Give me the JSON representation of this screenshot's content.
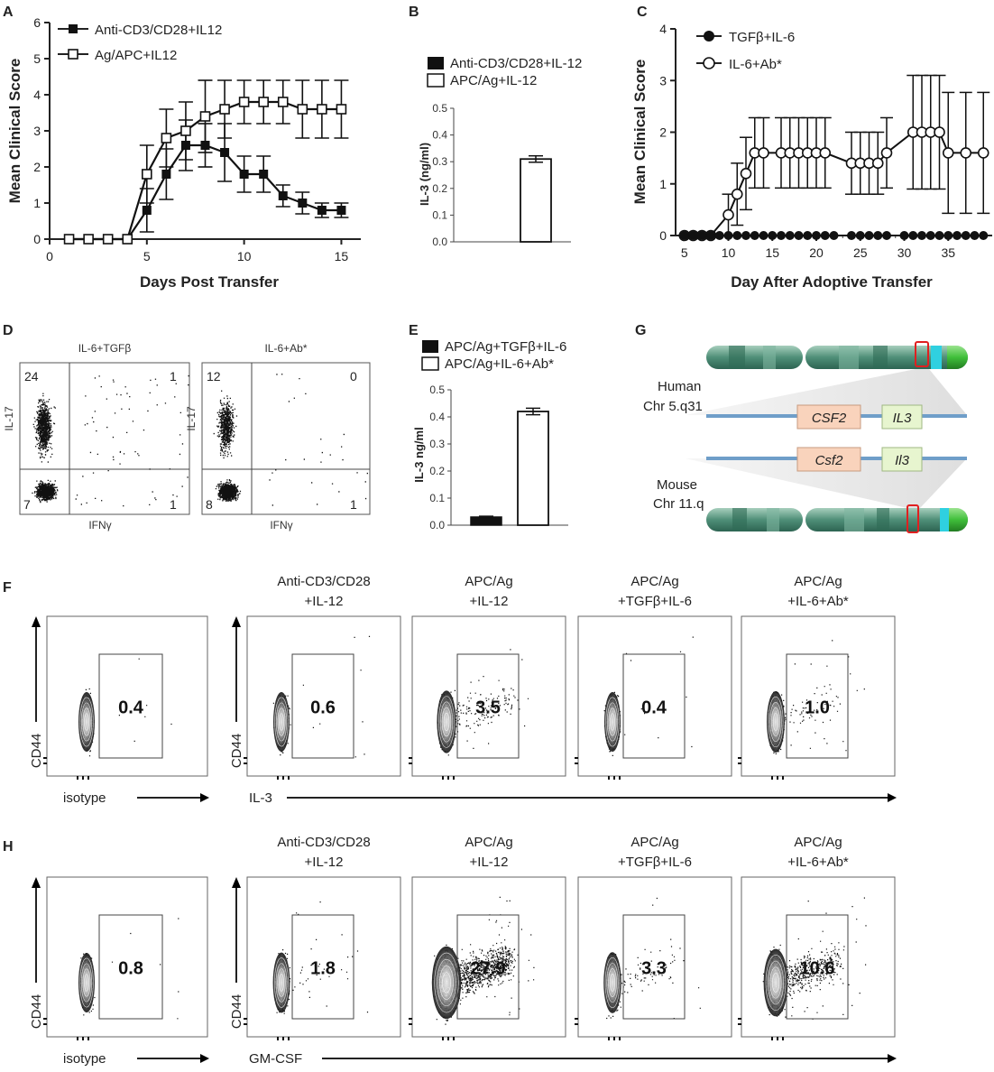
{
  "panel_labels": {
    "A": "A",
    "B": "B",
    "C": "C",
    "D": "D",
    "E": "E",
    "F": "F",
    "G": "G",
    "H": "H"
  },
  "chart_data": [
    {
      "id": "A",
      "type": "line",
      "xlabel": "Days Post Transfer",
      "ylabel": "Mean Clinical Score",
      "xlim": [
        0,
        16
      ],
      "ylim": [
        0,
        6
      ],
      "xticks": [
        "0",
        "5",
        "10",
        "15"
      ],
      "yticks": [
        "0",
        "1",
        "2",
        "3",
        "4",
        "5",
        "6"
      ],
      "series": [
        {
          "name": "Anti-CD3/CD28+IL12",
          "marker": "filled-square",
          "x": [
            1,
            2,
            3,
            4,
            5,
            6,
            7,
            8,
            9,
            10,
            11,
            12,
            13,
            14,
            15
          ],
          "y": [
            0,
            0,
            0,
            0,
            0.8,
            1.8,
            2.6,
            2.6,
            2.4,
            1.8,
            1.8,
            1.2,
            1.0,
            0.8,
            0.8
          ],
          "err": [
            0,
            0,
            0,
            0,
            0.6,
            0.7,
            0.7,
            0.6,
            0.8,
            0.5,
            0.5,
            0.3,
            0.3,
            0.2,
            0.2
          ]
        },
        {
          "name": "Ag/APC+IL12",
          "marker": "open-square",
          "x": [
            1,
            2,
            3,
            4,
            5,
            6,
            7,
            8,
            9,
            10,
            11,
            12,
            13,
            14,
            15
          ],
          "y": [
            0,
            0,
            0,
            0,
            1.8,
            2.8,
            3.0,
            3.4,
            3.6,
            3.8,
            3.8,
            3.8,
            3.6,
            3.6,
            3.6
          ],
          "err": [
            0,
            0,
            0,
            0,
            0.8,
            0.8,
            0.8,
            1.0,
            0.8,
            0.6,
            0.6,
            0.6,
            0.8,
            0.8,
            0.8
          ]
        }
      ]
    },
    {
      "id": "B",
      "type": "bar",
      "ylabel": "IL-3 (ng/ml)",
      "ylim": [
        0,
        0.5
      ],
      "yticks": [
        "0.0",
        "0.1",
        "0.2",
        "0.3",
        "0.4",
        "0.5"
      ],
      "categories": [
        "Anti-CD3/CD28+IL-12",
        "APC/Ag+IL-12"
      ],
      "values": [
        0,
        0.31
      ],
      "err": [
        0,
        0.012
      ]
    },
    {
      "id": "C",
      "type": "line",
      "xlabel": "Day After Adoptive Transfer",
      "ylabel": "Mean Clinical Score",
      "xlim": [
        4,
        40
      ],
      "ylim": [
        0,
        4
      ],
      "xticks": [
        "5",
        "10",
        "15",
        "20",
        "25",
        "30",
        "35"
      ],
      "yticks": [
        "0",
        "1",
        "2",
        "3",
        "4"
      ],
      "series": [
        {
          "name": "TGFβ+IL-6",
          "marker": "filled-circle",
          "x": [
            5,
            6,
            7,
            8,
            9,
            10,
            11,
            12,
            13,
            14,
            15,
            16,
            17,
            18,
            19,
            20,
            21,
            22,
            24,
            25,
            26,
            27,
            28,
            30,
            31,
            32,
            33,
            34,
            35,
            36,
            37,
            38,
            39
          ],
          "y": [
            0,
            0,
            0,
            0,
            0,
            0,
            0,
            0,
            0,
            0,
            0,
            0,
            0,
            0,
            0,
            0,
            0,
            0,
            0,
            0,
            0,
            0,
            0,
            0,
            0,
            0,
            0,
            0,
            0,
            0,
            0,
            0,
            0
          ],
          "err": []
        },
        {
          "name": "IL-6+Ab*",
          "marker": "open-circle",
          "x": [
            5,
            6,
            7,
            8,
            10,
            11,
            12,
            13,
            14,
            16,
            17,
            18,
            19,
            20,
            21,
            24,
            25,
            26,
            27,
            28,
            31,
            32,
            33,
            34,
            35,
            37,
            39
          ],
          "y": [
            0,
            0,
            0,
            0,
            0.4,
            0.8,
            1.2,
            1.6,
            1.6,
            1.6,
            1.6,
            1.6,
            1.6,
            1.6,
            1.6,
            1.4,
            1.4,
            1.4,
            1.4,
            1.6,
            2.0,
            2.0,
            2.0,
            2.0,
            1.6,
            1.6,
            1.6
          ],
          "err": [
            0,
            0,
            0,
            0,
            0.4,
            0.6,
            0.7,
            0.68,
            0.68,
            0.68,
            0.68,
            0.68,
            0.68,
            0.68,
            0.68,
            0.6,
            0.6,
            0.6,
            0.6,
            0.68,
            1.1,
            1.1,
            1.1,
            1.1,
            1.17,
            1.17,
            1.17
          ]
        }
      ]
    },
    {
      "id": "E",
      "type": "bar",
      "ylabel": "IL-3 ng/ml",
      "ylim": [
        0,
        0.5
      ],
      "yticks": [
        "0.0",
        "0.1",
        "0.2",
        "0.3",
        "0.4",
        "0.5"
      ],
      "categories": [
        "APC/Ag+TGFβ+IL-6",
        "APC/Ag+IL-6+Ab*"
      ],
      "values": [
        0.03,
        0.42
      ],
      "err": [
        0.003,
        0.012
      ]
    }
  ],
  "panelD": {
    "x_axis": "IFNγ",
    "y_axis": "IL-17",
    "plots": [
      {
        "title": "IL-6+TGFβ",
        "q_tl": "24",
        "q_tr": "1",
        "q_bl": "7",
        "q_br": "1"
      },
      {
        "title": "IL-6+Ab*",
        "q_tl": "12",
        "q_tr": "0",
        "q_bl": "8",
        "q_br": "1"
      }
    ]
  },
  "panelG": {
    "human_label_1": "Human",
    "human_label_2": "Chr 5.q31",
    "mouse_label_1": "Mouse",
    "mouse_label_2": "Chr 11.q",
    "human_genes": [
      "CSF2",
      "IL3"
    ],
    "mouse_genes": [
      "Csf2",
      "Il3"
    ]
  },
  "panelF": {
    "y_axis": "CD44",
    "isotype_label": "isotype",
    "x_axis": "IL-3",
    "isotype_value": "0.4",
    "plots": [
      {
        "title1": "Anti-CD3/CD28",
        "title2": "+IL-12",
        "value": "0.6"
      },
      {
        "title1": "APC/Ag",
        "title2": "+IL-12",
        "value": "3.5"
      },
      {
        "title1": "APC/Ag",
        "title2": "+TGFβ+IL-6",
        "value": "0.4"
      },
      {
        "title1": "APC/Ag",
        "title2": "+IL-6+Ab*",
        "value": "1.0"
      }
    ]
  },
  "panelH": {
    "y_axis": "CD44",
    "isotype_label": "isotype",
    "x_axis": "GM-CSF",
    "isotype_value": "0.8",
    "plots": [
      {
        "title1": "Anti-CD3/CD28",
        "title2": "+IL-12",
        "value": "1.8"
      },
      {
        "title1": "APC/Ag",
        "title2": "+IL-12",
        "value": "27.9"
      },
      {
        "title1": "APC/Ag",
        "title2": "+TGFβ+IL-6",
        "value": "3.3"
      },
      {
        "title1": "APC/Ag",
        "title2": "+IL-6+Ab*",
        "value": "10.6"
      }
    ]
  }
}
